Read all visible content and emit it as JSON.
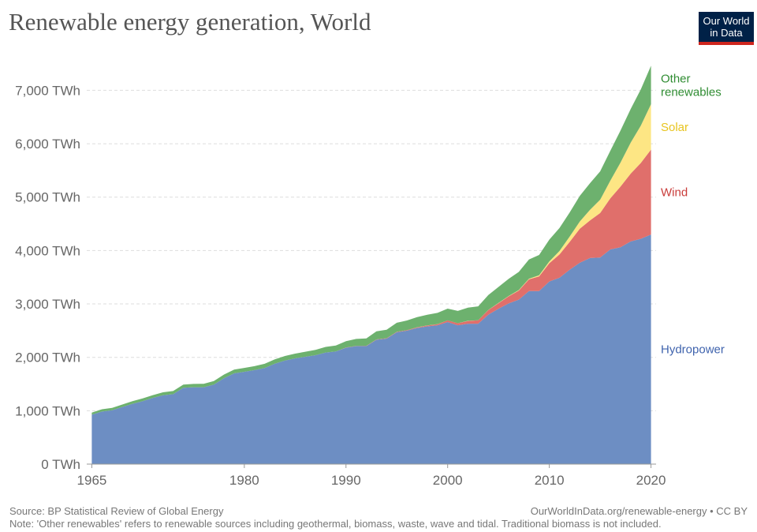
{
  "title": "Renewable energy generation, World",
  "logo": {
    "line1": "Our World",
    "line2": "in Data"
  },
  "source_note": "Source: BP Statistical Review of Global Energy",
  "link_note": "OurWorldInData.org/renewable-energy • CC BY",
  "footnote": "Note: 'Other renewables' refers to renewable sources including geothermal, biomass, waste, wave and tidal. Traditional biomass is not included.",
  "colors": {
    "Hydropower": "#6d8ec3",
    "Wind": "#e06f6b",
    "Solar": "#fde684",
    "Other renewables": "#6db16e"
  },
  "label_colors": {
    "Hydropower": "#3f63ad",
    "Wind": "#c93c3a",
    "Solar": "#e8c41f",
    "Other renewables": "#2f8c32"
  },
  "chart_data": {
    "type": "area",
    "stacked": true,
    "title": "Renewable energy generation, World",
    "xlabel": "",
    "ylabel": "",
    "xlim": [
      1965,
      2020
    ],
    "ylim": [
      0,
      7000
    ],
    "y_ticks": [
      0,
      1000,
      2000,
      3000,
      4000,
      5000,
      6000,
      7000
    ],
    "y_tick_labels": [
      "0 TWh",
      "1,000 TWh",
      "2,000 TWh",
      "3,000 TWh",
      "4,000 TWh",
      "5,000 TWh",
      "6,000 TWh",
      "7,000 TWh"
    ],
    "x_ticks": [
      1965,
      1980,
      1990,
      2000,
      2010,
      2020
    ],
    "x_tick_labels": [
      "1965",
      "1980",
      "1990",
      "2000",
      "2010",
      "2020"
    ],
    "x": [
      1965,
      1966,
      1967,
      1968,
      1969,
      1970,
      1971,
      1972,
      1973,
      1974,
      1975,
      1976,
      1977,
      1978,
      1979,
      1980,
      1981,
      1982,
      1983,
      1984,
      1985,
      1986,
      1987,
      1988,
      1989,
      1990,
      1991,
      1992,
      1993,
      1994,
      1995,
      1996,
      1997,
      1998,
      1999,
      2000,
      2001,
      2002,
      2003,
      2004,
      2005,
      2006,
      2007,
      2008,
      2009,
      2010,
      2011,
      2012,
      2013,
      2014,
      2015,
      2016,
      2017,
      2018,
      2019,
      2020
    ],
    "series": [
      {
        "name": "Hydropower",
        "label": "Hydropower",
        "values": [
          925,
          985,
          1010,
          1070,
          1130,
          1180,
          1240,
          1290,
          1310,
          1430,
          1440,
          1440,
          1490,
          1610,
          1700,
          1730,
          1760,
          1800,
          1880,
          1940,
          1980,
          2010,
          2040,
          2090,
          2110,
          2180,
          2210,
          2210,
          2330,
          2350,
          2470,
          2500,
          2550,
          2580,
          2600,
          2660,
          2600,
          2630,
          2630,
          2800,
          2910,
          3010,
          3080,
          3240,
          3240,
          3420,
          3490,
          3640,
          3770,
          3860,
          3870,
          4020,
          4060,
          4170,
          4220,
          4300
        ]
      },
      {
        "name": "Wind",
        "label": "Wind",
        "values": [
          0,
          0,
          0,
          0,
          0,
          0,
          0,
          0,
          0,
          0,
          0,
          0,
          0,
          0,
          0,
          0,
          0,
          0,
          0,
          0,
          0,
          0,
          0,
          0,
          0,
          3,
          4,
          5,
          6,
          7,
          8,
          10,
          12,
          16,
          21,
          31,
          38,
          52,
          63,
          85,
          104,
          133,
          171,
          220,
          277,
          342,
          436,
          521,
          637,
          705,
          832,
          958,
          1137,
          1270,
          1420,
          1590
        ]
      },
      {
        "name": "Solar",
        "label": "Solar",
        "values": [
          0,
          0,
          0,
          0,
          0,
          0,
          0,
          0,
          0,
          0,
          0,
          0,
          0,
          0,
          0,
          0,
          0,
          0,
          0,
          0,
          0,
          0,
          0,
          0,
          0,
          0,
          0,
          0,
          0,
          0,
          0,
          0,
          1,
          1,
          1,
          1,
          1,
          2,
          2,
          3,
          4,
          6,
          8,
          12,
          20,
          32,
          65,
          100,
          137,
          196,
          250,
          330,
          450,
          580,
          700,
          850
        ]
      },
      {
        "name": "Other renewables",
        "label": "Other\nrenewables",
        "values": [
          40,
          42,
          44,
          46,
          48,
          50,
          52,
          55,
          58,
          60,
          62,
          64,
          66,
          68,
          70,
          72,
          75,
          78,
          82,
          85,
          90,
          95,
          100,
          105,
          110,
          120,
          130,
          140,
          150,
          160,
          170,
          180,
          190,
          200,
          210,
          220,
          230,
          245,
          260,
          280,
          300,
          320,
          340,
          360,
          380,
          410,
          430,
          450,
          480,
          500,
          530,
          560,
          600,
          630,
          680,
          720
        ]
      }
    ]
  }
}
